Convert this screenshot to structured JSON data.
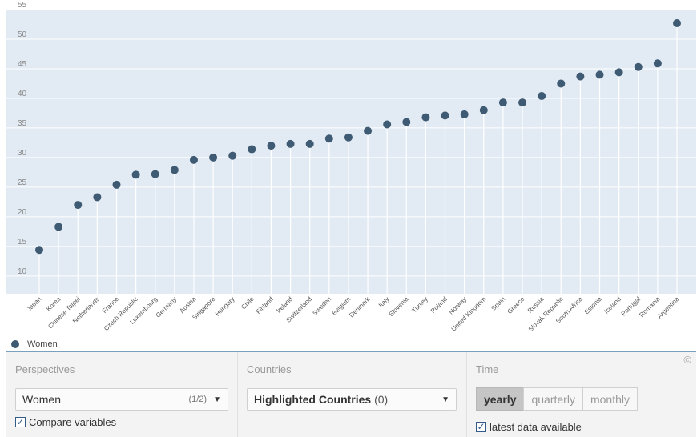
{
  "chart_data": {
    "type": "scatter",
    "categories": [
      "Japan",
      "Korea",
      "Chinese Taipei",
      "Netherlands",
      "France",
      "Czech Republic",
      "Luxembourg",
      "Germany",
      "Austria",
      "Singapore",
      "Hungary",
      "Chile",
      "Finland",
      "Ireland",
      "Switzerland",
      "Sweden",
      "Belgium",
      "Denmark",
      "Italy",
      "Slovenia",
      "Turkey",
      "Poland",
      "Norway",
      "United Kingdom",
      "Spain",
      "Greece",
      "Russia",
      "Slovak Republic",
      "South Africa",
      "Estonia",
      "Iceland",
      "Portugal",
      "Romania",
      "Argentina"
    ],
    "series": [
      {
        "name": "Women",
        "values": [
          14.4,
          18.3,
          22,
          23.3,
          25.4,
          27.1,
          27.2,
          27.9,
          29.6,
          30,
          30.3,
          31.4,
          32,
          32.3,
          32.3,
          33.2,
          33.4,
          34.5,
          35.6,
          36,
          36.8,
          37.1,
          37.3,
          38,
          39.3,
          39.3,
          40.4,
          42.5,
          43.7,
          44,
          44.4,
          45.3,
          45.9,
          52.7
        ]
      }
    ],
    "yticks": [
      10,
      15,
      20,
      25,
      30,
      35,
      40,
      45,
      50,
      55
    ],
    "ylim": [
      7,
      55
    ],
    "grid": true,
    "legend_position": "bottom-left",
    "colors": {
      "marker": "#3f5a73",
      "plot_bg": "#e2ebf4",
      "drop_line": "#ffffff"
    }
  },
  "legend": {
    "label": "Women"
  },
  "controls": {
    "copyright_symbol": "©",
    "perspectives": {
      "title": "Perspectives",
      "selected": "Women",
      "count": "(1/2)",
      "compare_label": "Compare variables",
      "compare_checked": true
    },
    "countries": {
      "title": "Countries",
      "selected": "Highlighted Countries",
      "count": "(0)"
    },
    "time": {
      "title": "Time",
      "options": [
        "yearly",
        "quarterly",
        "monthly"
      ],
      "active": "yearly",
      "latest_label": "latest data available",
      "latest_checked": true
    }
  }
}
